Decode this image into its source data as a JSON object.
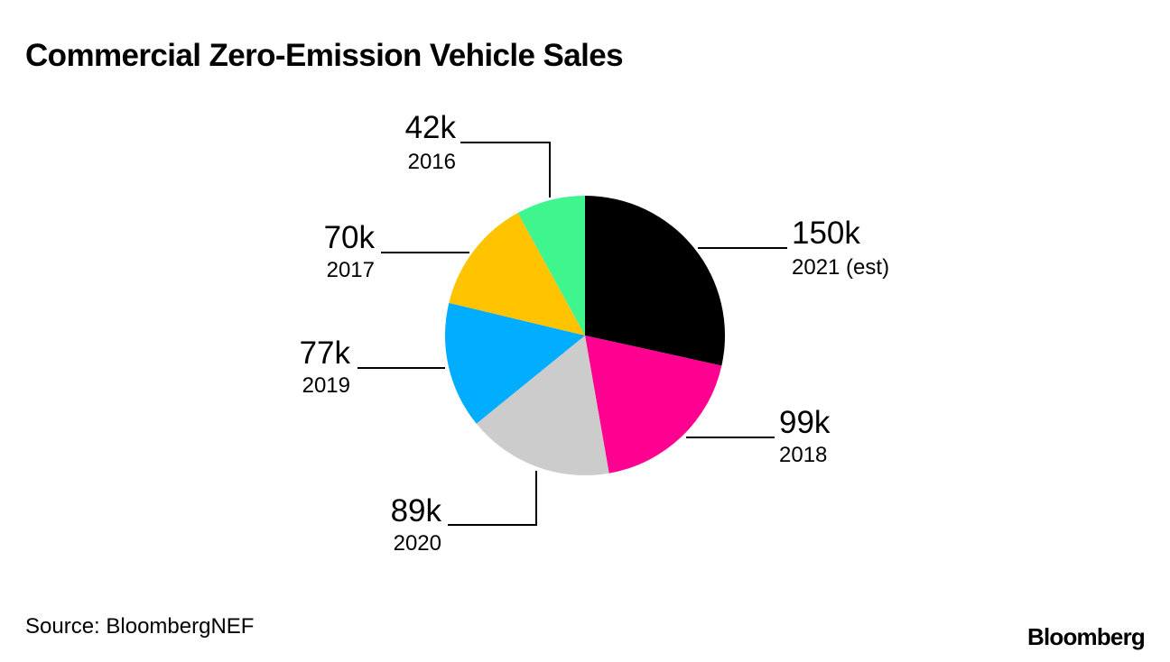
{
  "title": "Commercial Zero-Emission Vehicle Sales",
  "source": "Source: BloombergNEF",
  "brand": "Bloomberg",
  "chart_data": {
    "type": "pie",
    "title": "Commercial Zero-Emission Vehicle Sales",
    "unit": "k",
    "slices": [
      {
        "label": "2021 (est)",
        "value": 150,
        "value_label": "150k",
        "color": "#000000"
      },
      {
        "label": "2018",
        "value": 99,
        "value_label": "99k",
        "color": "#ff0090"
      },
      {
        "label": "2020",
        "value": 89,
        "value_label": "89k",
        "color": "#cccccc"
      },
      {
        "label": "2019",
        "value": 77,
        "value_label": "77k",
        "color": "#00adff"
      },
      {
        "label": "2017",
        "value": 70,
        "value_label": "70k",
        "color": "#ffc300"
      },
      {
        "label": "2016",
        "value": 42,
        "value_label": "42k",
        "color": "#3ff58e"
      }
    ],
    "start_angle": "12 o'clock",
    "direction": "clockwise",
    "legend": "none"
  }
}
